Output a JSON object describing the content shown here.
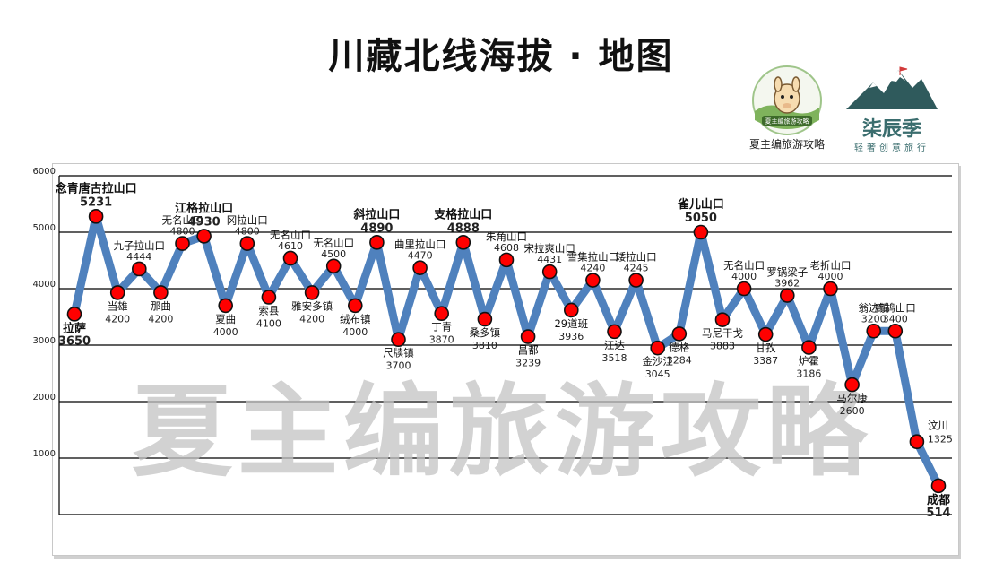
{
  "header": {
    "title": "川藏北线海拔 · 地图"
  },
  "logos": {
    "left_caption": "夏主编旅游攻略",
    "left_badge": "夏主编旅游攻略",
    "right_brand": "柒辰季",
    "right_slogan": "轻奢创意旅行"
  },
  "watermark": "夏主编旅游攻略",
  "colors": {
    "line": "#4f81bd",
    "marker_fill": "#ff0000",
    "marker_stroke": "#111111",
    "gridline": "#000000"
  },
  "chart_data": {
    "type": "line",
    "title": "",
    "xlabel": "",
    "ylabel": "",
    "ylim": [
      0,
      6000
    ],
    "yticks": [
      "1000",
      "2000",
      "3000",
      "4000",
      "5000",
      "6000"
    ],
    "grid": true,
    "legend": "none",
    "points": [
      {
        "name": "拉萨",
        "altitude": "3650",
        "value": 3550,
        "highlight": true,
        "pos": "below"
      },
      {
        "name": "念青唐古拉山口",
        "altitude": "5231",
        "value": 5280,
        "highlight": true,
        "pos": "above"
      },
      {
        "name": "当雄",
        "altitude": "4200",
        "value": 3930,
        "highlight": false,
        "pos": "below"
      },
      {
        "name": "九子拉山口",
        "altitude": "4444",
        "value": 4350,
        "highlight": false,
        "pos": "above"
      },
      {
        "name": "那曲",
        "altitude": "4200",
        "value": 3930,
        "highlight": false,
        "pos": "below"
      },
      {
        "name": "无名山口",
        "altitude": "4800",
        "value": 4800,
        "highlight": false,
        "pos": "above"
      },
      {
        "name": "江格拉山口",
        "altitude": "4930",
        "value": 4930,
        "highlight": true,
        "pos": "above"
      },
      {
        "name": "夏曲",
        "altitude": "4000",
        "value": 3700,
        "highlight": false,
        "pos": "below"
      },
      {
        "name": "冈拉山口",
        "altitude": "4800",
        "value": 4800,
        "highlight": false,
        "pos": "above"
      },
      {
        "name": "索县",
        "altitude": "4100",
        "value": 3850,
        "highlight": false,
        "pos": "below"
      },
      {
        "name": "无名山口",
        "altitude": "4610",
        "value": 4540,
        "highlight": false,
        "pos": "above"
      },
      {
        "name": "雅安多镇",
        "altitude": "4200",
        "value": 3930,
        "highlight": false,
        "pos": "below"
      },
      {
        "name": "无名山口",
        "altitude": "4500",
        "value": 4400,
        "highlight": false,
        "pos": "above"
      },
      {
        "name": "绒布镇",
        "altitude": "4000",
        "value": 3700,
        "highlight": false,
        "pos": "below"
      },
      {
        "name": "斜拉山口",
        "altitude": "4890",
        "value": 4820,
        "highlight": true,
        "pos": "above"
      },
      {
        "name": "尺牍镇",
        "altitude": "3700",
        "value": 3100,
        "highlight": false,
        "pos": "below"
      },
      {
        "name": "曲里拉山口",
        "altitude": "4470",
        "value": 4370,
        "highlight": false,
        "pos": "above"
      },
      {
        "name": "丁青",
        "altitude": "3870",
        "value": 3560,
        "highlight": false,
        "pos": "below"
      },
      {
        "name": "支格拉山口",
        "altitude": "4888",
        "value": 4820,
        "highlight": true,
        "pos": "above"
      },
      {
        "name": "桑多镇",
        "altitude": "3810",
        "value": 3460,
        "highlight": false,
        "pos": "below"
      },
      {
        "name": "朱角山口",
        "altitude": "4608",
        "value": 4510,
        "highlight": false,
        "pos": "above"
      },
      {
        "name": "昌都",
        "altitude": "3239",
        "value": 3150,
        "highlight": false,
        "pos": "below"
      },
      {
        "name": "宋拉爽山口",
        "altitude": "4431",
        "value": 4300,
        "highlight": false,
        "pos": "above"
      },
      {
        "name": "29道班",
        "altitude": "3936",
        "value": 3620,
        "highlight": false,
        "pos": "below"
      },
      {
        "name": "雪集拉山口",
        "altitude": "4240",
        "value": 4150,
        "highlight": false,
        "pos": "above"
      },
      {
        "name": "江达",
        "altitude": "3518",
        "value": 3240,
        "highlight": false,
        "pos": "below"
      },
      {
        "name": "矮拉山口",
        "altitude": "4245",
        "value": 4150,
        "highlight": false,
        "pos": "above"
      },
      {
        "name": "金沙江",
        "altitude": "3045",
        "value": 2950,
        "highlight": false,
        "pos": "below"
      },
      {
        "name": "德格",
        "altitude": "3284",
        "value": 3200,
        "highlight": false,
        "pos": "below"
      },
      {
        "name": "雀儿山口",
        "altitude": "5050",
        "value": 5000,
        "highlight": true,
        "pos": "above"
      },
      {
        "name": "马尼干戈",
        "altitude": "3883",
        "value": 3450,
        "highlight": false,
        "pos": "below"
      },
      {
        "name": "无名山口",
        "altitude": "4000",
        "value": 4000,
        "highlight": false,
        "pos": "above"
      },
      {
        "name": "甘孜",
        "altitude": "3387",
        "value": 3190,
        "highlight": false,
        "pos": "below"
      },
      {
        "name": "罗锅梁子",
        "altitude": "3962",
        "value": 3880,
        "highlight": false,
        "pos": "above"
      },
      {
        "name": "炉霍",
        "altitude": "3186",
        "value": 2960,
        "highlight": false,
        "pos": "below"
      },
      {
        "name": "老折山口",
        "altitude": "4000",
        "value": 4000,
        "highlight": false,
        "pos": "above"
      },
      {
        "name": "马尔康",
        "altitude": "2600",
        "value": 2300,
        "highlight": false,
        "pos": "below"
      },
      {
        "name": "翁达镇",
        "altitude": "3200",
        "value": 3250,
        "highlight": false,
        "pos": "above"
      },
      {
        "name": "鹧鸪山口",
        "altitude": "3400",
        "value": 3250,
        "highlight": false,
        "pos": "above"
      },
      {
        "name": "汶川",
        "altitude": "1325",
        "value": 1290,
        "highlight": false,
        "pos": "right"
      },
      {
        "name": "成都",
        "altitude": "514",
        "value": 510,
        "highlight": true,
        "pos": "below"
      }
    ]
  }
}
